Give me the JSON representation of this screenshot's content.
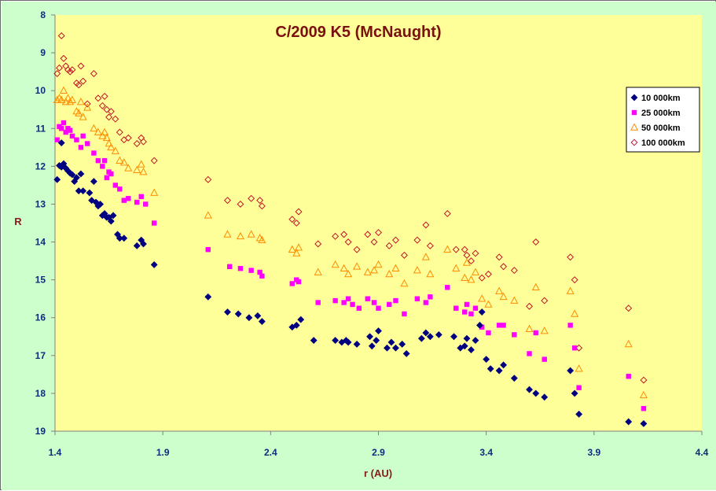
{
  "colors": {
    "outer_background": "#ccffcc",
    "plot_background": "#ffff99",
    "axis": "#7f7f7f",
    "series_10000": "#000080",
    "series_25000": "#ff00ff",
    "series_50000": "#ff8c00",
    "series_100000": "#c0001e"
  },
  "chart_data": {
    "type": "scatter",
    "title": "C/2009 K5 (McNaught)",
    "xlabel": "r (AU)",
    "ylabel": "R",
    "xlim": [
      1.4,
      4.4
    ],
    "ylim": [
      8,
      19
    ],
    "y_inverted": true,
    "x_ticks": [
      "1.4",
      "1.9",
      "2.4",
      "2.9",
      "3.4",
      "3.9",
      "4.4"
    ],
    "y_ticks": [
      "8",
      "9",
      "10",
      "11",
      "12",
      "13",
      "14",
      "15",
      "16",
      "17",
      "18",
      "19"
    ],
    "grid": false,
    "legend_position": "top-right",
    "series": [
      {
        "name": "10 000km",
        "marker": "diamond-filled",
        "color": "#000080",
        "points": [
          [
            1.41,
            12.35
          ],
          [
            1.42,
            11.98
          ],
          [
            1.43,
            12.02
          ],
          [
            1.43,
            11.38
          ],
          [
            1.44,
            11.93
          ],
          [
            1.45,
            12.05
          ],
          [
            1.46,
            12.12
          ],
          [
            1.47,
            12.18
          ],
          [
            1.48,
            12.22
          ],
          [
            1.49,
            12.4
          ],
          [
            1.5,
            12.3
          ],
          [
            1.51,
            12.65
          ],
          [
            1.52,
            12.2
          ],
          [
            1.53,
            12.65
          ],
          [
            1.56,
            12.7
          ],
          [
            1.57,
            12.9
          ],
          [
            1.58,
            12.4
          ],
          [
            1.59,
            12.95
          ],
          [
            1.6,
            13.05
          ],
          [
            1.61,
            13.0
          ],
          [
            1.62,
            13.3
          ],
          [
            1.63,
            13.25
          ],
          [
            1.64,
            13.35
          ],
          [
            1.65,
            13.35
          ],
          [
            1.66,
            13.45
          ],
          [
            1.67,
            13.3
          ],
          [
            1.69,
            13.8
          ],
          [
            1.7,
            13.9
          ],
          [
            1.72,
            13.9
          ],
          [
            1.78,
            14.1
          ],
          [
            1.8,
            13.95
          ],
          [
            1.81,
            14.05
          ],
          [
            1.86,
            14.6
          ],
          [
            2.11,
            15.45
          ],
          [
            2.2,
            15.85
          ],
          [
            2.25,
            15.9
          ],
          [
            2.3,
            16.0
          ],
          [
            2.34,
            15.95
          ],
          [
            2.36,
            16.1
          ],
          [
            2.5,
            16.25
          ],
          [
            2.52,
            16.2
          ],
          [
            2.54,
            16.05
          ],
          [
            2.6,
            16.6
          ],
          [
            2.7,
            16.6
          ],
          [
            2.73,
            16.65
          ],
          [
            2.75,
            16.6
          ],
          [
            2.76,
            16.65
          ],
          [
            2.8,
            16.7
          ],
          [
            2.86,
            16.5
          ],
          [
            2.87,
            16.75
          ],
          [
            2.89,
            16.6
          ],
          [
            2.9,
            16.35
          ],
          [
            2.94,
            16.8
          ],
          [
            2.96,
            16.65
          ],
          [
            2.98,
            16.8
          ],
          [
            3.01,
            16.7
          ],
          [
            3.03,
            16.95
          ],
          [
            3.1,
            16.55
          ],
          [
            3.12,
            16.4
          ],
          [
            3.14,
            16.5
          ],
          [
            3.18,
            16.45
          ],
          [
            3.25,
            16.5
          ],
          [
            3.28,
            16.8
          ],
          [
            3.3,
            16.75
          ],
          [
            3.31,
            16.55
          ],
          [
            3.33,
            16.85
          ],
          [
            3.35,
            16.6
          ],
          [
            3.37,
            16.2
          ],
          [
            3.38,
            15.85
          ],
          [
            3.4,
            17.1
          ],
          [
            3.42,
            17.35
          ],
          [
            3.46,
            17.4
          ],
          [
            3.48,
            17.25
          ],
          [
            3.53,
            17.6
          ],
          [
            3.6,
            17.9
          ],
          [
            3.63,
            18.0
          ],
          [
            3.67,
            18.1
          ],
          [
            3.79,
            17.4
          ],
          [
            3.81,
            18.0
          ],
          [
            3.83,
            18.55
          ],
          [
            4.06,
            18.75
          ],
          [
            4.13,
            18.8
          ]
        ]
      },
      {
        "name": "25 000km",
        "marker": "square-filled",
        "color": "#ff00ff",
        "points": [
          [
            1.41,
            11.3
          ],
          [
            1.42,
            10.95
          ],
          [
            1.43,
            11.0
          ],
          [
            1.44,
            10.85
          ],
          [
            1.45,
            11.1
          ],
          [
            1.46,
            11.0
          ],
          [
            1.47,
            11.05
          ],
          [
            1.48,
            11.2
          ],
          [
            1.5,
            11.3
          ],
          [
            1.52,
            11.5
          ],
          [
            1.53,
            11.2
          ],
          [
            1.55,
            11.4
          ],
          [
            1.58,
            11.65
          ],
          [
            1.6,
            11.85
          ],
          [
            1.62,
            12.0
          ],
          [
            1.63,
            11.85
          ],
          [
            1.64,
            12.3
          ],
          [
            1.65,
            12.15
          ],
          [
            1.66,
            12.2
          ],
          [
            1.68,
            12.5
          ],
          [
            1.7,
            12.6
          ],
          [
            1.72,
            12.9
          ],
          [
            1.74,
            12.85
          ],
          [
            1.78,
            12.95
          ],
          [
            1.8,
            12.8
          ],
          [
            1.82,
            13.0
          ],
          [
            1.86,
            13.5
          ],
          [
            2.11,
            14.2
          ],
          [
            2.21,
            14.65
          ],
          [
            2.26,
            14.7
          ],
          [
            2.31,
            14.75
          ],
          [
            2.35,
            14.8
          ],
          [
            2.36,
            14.9
          ],
          [
            2.5,
            15.1
          ],
          [
            2.52,
            15.0
          ],
          [
            2.53,
            15.05
          ],
          [
            2.62,
            15.6
          ],
          [
            2.7,
            15.55
          ],
          [
            2.74,
            15.6
          ],
          [
            2.76,
            15.5
          ],
          [
            2.78,
            15.65
          ],
          [
            2.81,
            15.75
          ],
          [
            2.85,
            15.5
          ],
          [
            2.88,
            15.6
          ],
          [
            2.9,
            15.75
          ],
          [
            2.95,
            15.65
          ],
          [
            2.98,
            15.55
          ],
          [
            3.02,
            15.9
          ],
          [
            3.08,
            15.5
          ],
          [
            3.12,
            15.6
          ],
          [
            3.14,
            15.45
          ],
          [
            3.22,
            15.2
          ],
          [
            3.26,
            15.75
          ],
          [
            3.3,
            15.85
          ],
          [
            3.31,
            15.65
          ],
          [
            3.33,
            15.9
          ],
          [
            3.35,
            15.75
          ],
          [
            3.38,
            16.25
          ],
          [
            3.41,
            16.4
          ],
          [
            3.46,
            16.2
          ],
          [
            3.48,
            16.2
          ],
          [
            3.53,
            16.45
          ],
          [
            3.6,
            16.95
          ],
          [
            3.63,
            16.4
          ],
          [
            3.67,
            17.1
          ],
          [
            3.79,
            16.2
          ],
          [
            3.81,
            16.8
          ],
          [
            3.83,
            17.85
          ],
          [
            4.06,
            17.55
          ],
          [
            4.13,
            18.4
          ]
        ]
      },
      {
        "name": "50 000km",
        "marker": "triangle-open",
        "color": "#ff8c00",
        "points": [
          [
            1.41,
            10.25
          ],
          [
            1.42,
            10.2
          ],
          [
            1.43,
            10.25
          ],
          [
            1.44,
            10.0
          ],
          [
            1.45,
            10.3
          ],
          [
            1.46,
            10.2
          ],
          [
            1.47,
            10.3
          ],
          [
            1.48,
            10.25
          ],
          [
            1.5,
            10.55
          ],
          [
            1.51,
            10.6
          ],
          [
            1.52,
            10.3
          ],
          [
            1.53,
            10.7
          ],
          [
            1.55,
            10.45
          ],
          [
            1.58,
            11.0
          ],
          [
            1.6,
            11.1
          ],
          [
            1.62,
            11.2
          ],
          [
            1.63,
            11.1
          ],
          [
            1.64,
            11.25
          ],
          [
            1.65,
            11.4
          ],
          [
            1.66,
            11.5
          ],
          [
            1.68,
            11.6
          ],
          [
            1.7,
            11.85
          ],
          [
            1.72,
            11.9
          ],
          [
            1.74,
            12.05
          ],
          [
            1.78,
            12.1
          ],
          [
            1.8,
            11.95
          ],
          [
            1.81,
            12.15
          ],
          [
            1.86,
            12.7
          ],
          [
            2.11,
            13.3
          ],
          [
            2.2,
            13.8
          ],
          [
            2.26,
            13.85
          ],
          [
            2.31,
            13.8
          ],
          [
            2.35,
            13.9
          ],
          [
            2.36,
            13.95
          ],
          [
            2.5,
            14.2
          ],
          [
            2.52,
            14.3
          ],
          [
            2.53,
            14.15
          ],
          [
            2.62,
            14.8
          ],
          [
            2.7,
            14.6
          ],
          [
            2.74,
            14.7
          ],
          [
            2.76,
            14.85
          ],
          [
            2.8,
            14.65
          ],
          [
            2.85,
            14.8
          ],
          [
            2.88,
            14.75
          ],
          [
            2.9,
            14.6
          ],
          [
            2.95,
            14.85
          ],
          [
            2.98,
            14.7
          ],
          [
            3.02,
            15.1
          ],
          [
            3.08,
            14.75
          ],
          [
            3.12,
            14.4
          ],
          [
            3.14,
            14.85
          ],
          [
            3.22,
            14.2
          ],
          [
            3.26,
            14.7
          ],
          [
            3.3,
            14.95
          ],
          [
            3.31,
            14.55
          ],
          [
            3.33,
            15.0
          ],
          [
            3.35,
            14.8
          ],
          [
            3.38,
            15.5
          ],
          [
            3.41,
            15.65
          ],
          [
            3.46,
            15.3
          ],
          [
            3.48,
            15.45
          ],
          [
            3.53,
            15.55
          ],
          [
            3.6,
            16.3
          ],
          [
            3.63,
            15.2
          ],
          [
            3.67,
            16.35
          ],
          [
            3.79,
            15.3
          ],
          [
            3.81,
            15.9
          ],
          [
            3.83,
            17.35
          ],
          [
            4.06,
            16.7
          ],
          [
            4.13,
            18.05
          ]
        ]
      },
      {
        "name": "100 000km",
        "marker": "diamond-open",
        "color": "#c0001e",
        "points": [
          [
            1.41,
            9.55
          ],
          [
            1.42,
            9.4
          ],
          [
            1.43,
            8.55
          ],
          [
            1.44,
            9.15
          ],
          [
            1.45,
            9.35
          ],
          [
            1.46,
            9.45
          ],
          [
            1.47,
            9.5
          ],
          [
            1.48,
            9.45
          ],
          [
            1.5,
            9.8
          ],
          [
            1.51,
            9.85
          ],
          [
            1.52,
            9.35
          ],
          [
            1.53,
            9.75
          ],
          [
            1.55,
            10.35
          ],
          [
            1.58,
            9.55
          ],
          [
            1.6,
            10.2
          ],
          [
            1.62,
            10.4
          ],
          [
            1.63,
            10.15
          ],
          [
            1.64,
            10.5
          ],
          [
            1.65,
            10.7
          ],
          [
            1.66,
            10.55
          ],
          [
            1.68,
            10.75
          ],
          [
            1.7,
            11.1
          ],
          [
            1.72,
            11.3
          ],
          [
            1.74,
            11.25
          ],
          [
            1.78,
            11.4
          ],
          [
            1.8,
            11.25
          ],
          [
            1.81,
            11.35
          ],
          [
            1.86,
            11.85
          ],
          [
            2.11,
            12.35
          ],
          [
            2.2,
            12.9
          ],
          [
            2.26,
            13.0
          ],
          [
            2.31,
            12.85
          ],
          [
            2.35,
            12.9
          ],
          [
            2.36,
            13.05
          ],
          [
            2.5,
            13.4
          ],
          [
            2.52,
            13.5
          ],
          [
            2.53,
            13.2
          ],
          [
            2.62,
            14.05
          ],
          [
            2.7,
            13.85
          ],
          [
            2.74,
            13.8
          ],
          [
            2.76,
            14.0
          ],
          [
            2.8,
            14.2
          ],
          [
            2.85,
            13.8
          ],
          [
            2.88,
            14.0
          ],
          [
            2.9,
            13.75
          ],
          [
            2.95,
            14.1
          ],
          [
            2.98,
            13.95
          ],
          [
            3.02,
            14.35
          ],
          [
            3.08,
            13.95
          ],
          [
            3.12,
            13.55
          ],
          [
            3.14,
            14.1
          ],
          [
            3.22,
            13.25
          ],
          [
            3.26,
            14.2
          ],
          [
            3.3,
            14.2
          ],
          [
            3.31,
            14.35
          ],
          [
            3.33,
            14.5
          ],
          [
            3.35,
            14.3
          ],
          [
            3.38,
            14.95
          ],
          [
            3.41,
            14.85
          ],
          [
            3.46,
            14.4
          ],
          [
            3.48,
            14.65
          ],
          [
            3.53,
            14.75
          ],
          [
            3.6,
            15.7
          ],
          [
            3.63,
            14.0
          ],
          [
            3.67,
            15.55
          ],
          [
            3.79,
            14.4
          ],
          [
            3.81,
            15.0
          ],
          [
            3.83,
            16.8
          ],
          [
            4.06,
            15.75
          ],
          [
            4.13,
            17.65
          ]
        ]
      }
    ]
  }
}
